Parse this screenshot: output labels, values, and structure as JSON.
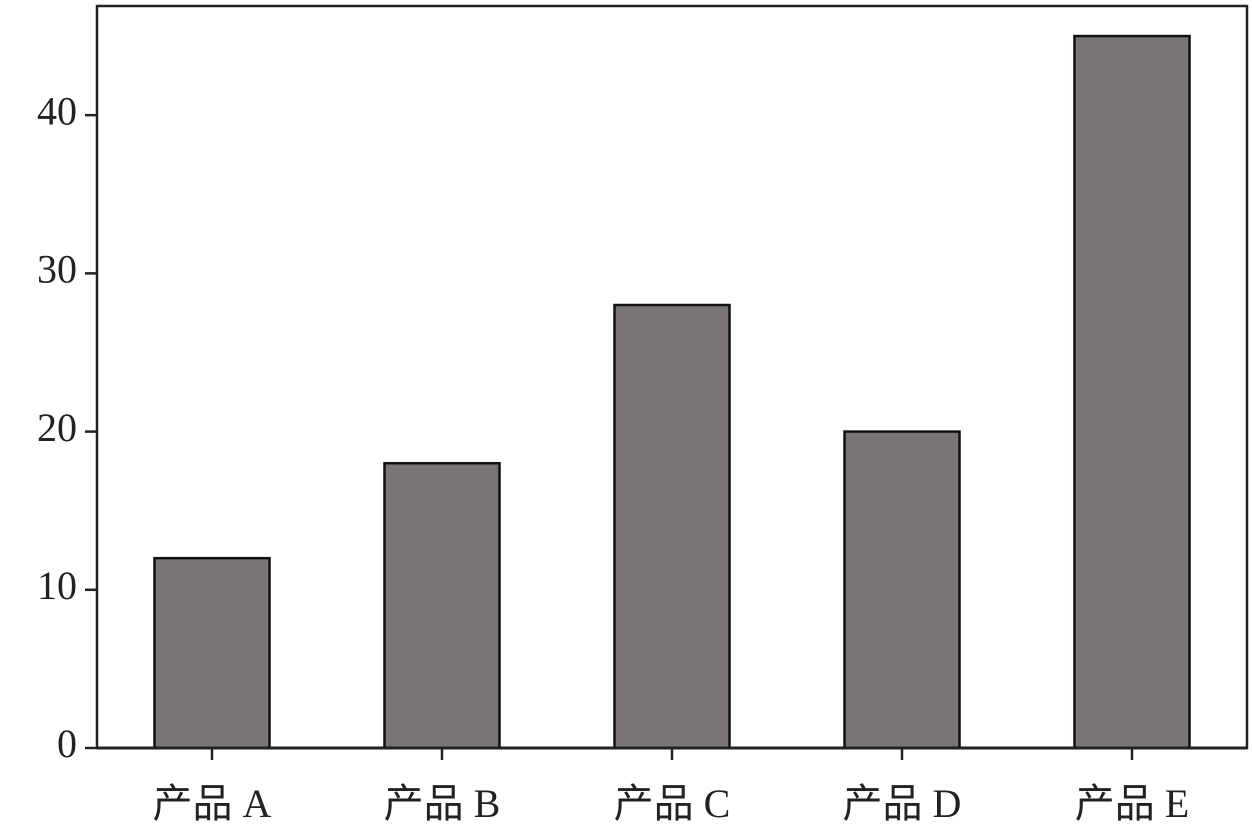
{
  "chart_data": {
    "type": "bar",
    "categories": [
      "产品 A",
      "产品 B",
      "产品 C",
      "产品 D",
      "产品 E"
    ],
    "values": [
      12,
      18,
      28,
      20,
      45
    ],
    "color": "#7a7475",
    "ylim": [
      0,
      46.9
    ],
    "yticks": [
      0,
      10,
      20,
      30,
      40
    ],
    "grid": false
  }
}
